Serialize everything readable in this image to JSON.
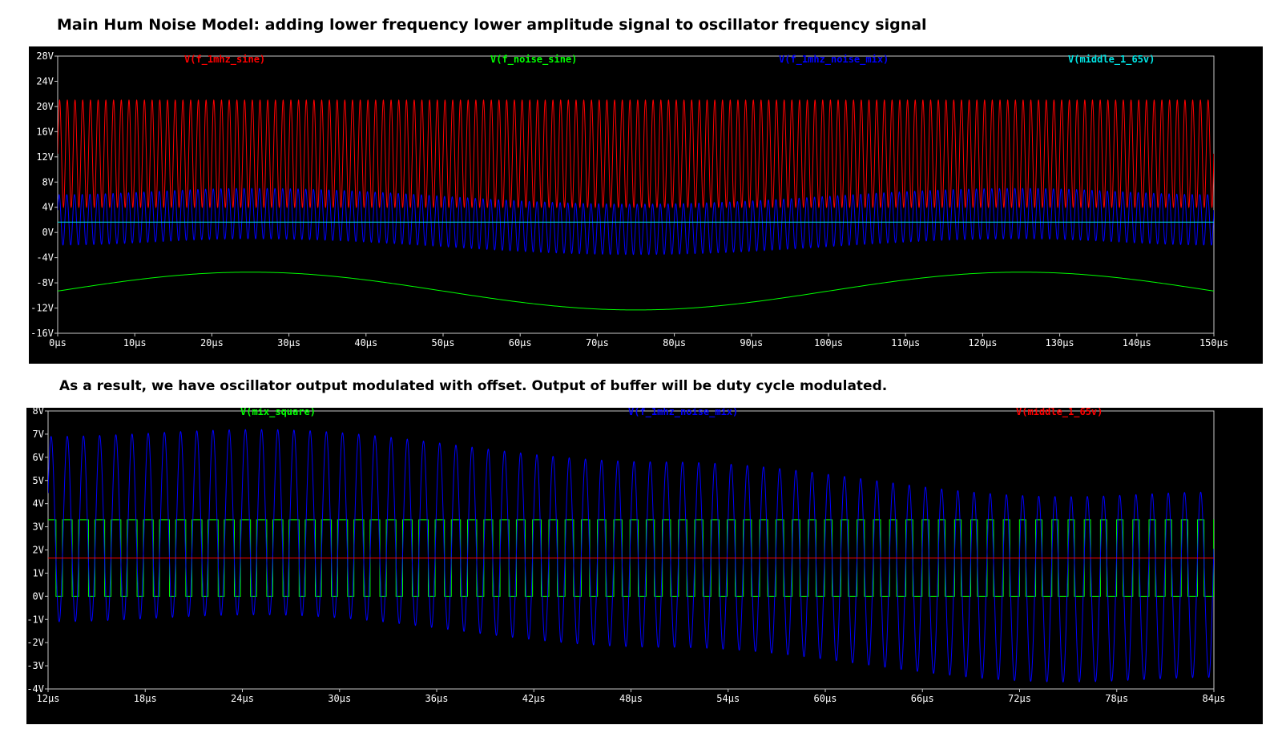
{
  "captions": {
    "top": "Main Hum Noise Model: adding lower frequency lower amplitude signal to oscillator frequency signal",
    "bottom": "As a result, we have oscillator output modulated with offset. Output of buffer will be duty cycle modulated."
  },
  "chart_data": [
    {
      "type": "line",
      "title": "",
      "xlabel": "",
      "ylabel": "",
      "x_ticks": [
        "0µs",
        "10µs",
        "20µs",
        "30µs",
        "40µs",
        "50µs",
        "60µs",
        "70µs",
        "80µs",
        "90µs",
        "100µs",
        "110µs",
        "120µs",
        "130µs",
        "140µs",
        "150µs"
      ],
      "y_ticks": [
        "28V",
        "24V",
        "20V",
        "16V",
        "12V",
        "8V",
        "4V",
        "0V",
        "-4V",
        "-8V",
        "-12V",
        "-16V"
      ],
      "xlim_us": [
        0,
        150
      ],
      "ylim_v": [
        -16,
        28
      ],
      "grid": false,
      "legend_position": "top",
      "series": [
        {
          "name": "V(f_1mhz_sine)",
          "color": "#ff0000",
          "waveform": "sine",
          "offset_v": 12.5,
          "amplitude_v": 8.5,
          "frequency_mhz": 1.0
        },
        {
          "name": "V(f_noise_sine)",
          "color": "#00ff00",
          "waveform": "sine",
          "offset_v": -9.3,
          "amplitude_v": 3.0,
          "period_us": 100,
          "phase": "minimum near 75µs, maximum near 25µs and 125µs"
        },
        {
          "name": "V(f_1mhz_noise_mix)",
          "color": "#0000ff",
          "waveform": "sine with slow offset drift",
          "center_v": [
            [
              0,
              2.0
            ],
            [
              25,
              3.0
            ],
            [
              75,
              0.5
            ],
            [
              125,
              3.0
            ],
            [
              150,
              2.0
            ]
          ],
          "amplitude_v": 4.0,
          "frequency_mhz": 1.0
        },
        {
          "name": "V(middle_1_65v)",
          "color": "#00e5e5",
          "waveform": "dc",
          "value_v": 1.65
        }
      ]
    },
    {
      "type": "line",
      "title": "",
      "xlabel": "",
      "ylabel": "",
      "x_ticks": [
        "12µs",
        "18µs",
        "24µs",
        "30µs",
        "36µs",
        "42µs",
        "48µs",
        "54µs",
        "60µs",
        "66µs",
        "72µs",
        "78µs",
        "84µs"
      ],
      "y_ticks": [
        "8V",
        "7V",
        "6V",
        "5V",
        "4V",
        "3V",
        "2V",
        "1V",
        "0V",
        "-1V",
        "-2V",
        "-3V",
        "-4V"
      ],
      "xlim_us": [
        12,
        84
      ],
      "ylim_v": [
        -4,
        8
      ],
      "grid": false,
      "legend_position": "top",
      "series": [
        {
          "name": "V(mix_square)",
          "color": "#00ff00",
          "waveform": "square",
          "low_v": 0,
          "high_v": 3.3,
          "frequency_mhz": 1.0,
          "threshold_v": 1.65
        },
        {
          "name": "V(f_1mhz_noise_mix)",
          "color": "#0000ff",
          "waveform": "sine with slow offset drift",
          "center_v": [
            [
              12,
              2.9
            ],
            [
              25,
              3.2
            ],
            [
              50,
              1.8
            ],
            [
              75,
              0.3
            ],
            [
              84,
              0.5
            ]
          ],
          "amplitude_v": 4.0,
          "frequency_mhz": 1.0
        },
        {
          "name": "V(middle_1_65v)",
          "color": "#ff0000",
          "waveform": "dc",
          "value_v": 1.65
        }
      ]
    }
  ]
}
